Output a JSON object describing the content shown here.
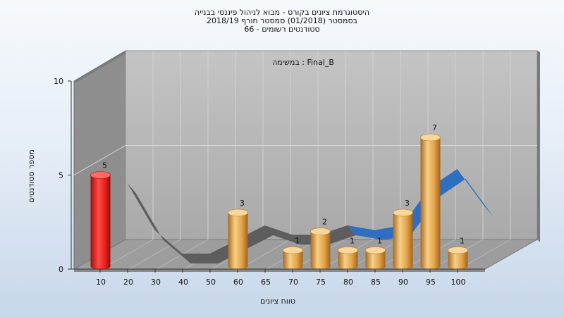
{
  "title_lines": [
    "היסטוגרמת ציונים בקורס - מבוא לניהול פיננסי בבנייה",
    "בסמסטר (01/2018) סמסטר חורף 2018/19",
    "סטודנטים רשומים - 66"
  ],
  "chart_data": {
    "type": "bar",
    "annotation": "במשימה : Final_B",
    "xlabel": "טווח ציונים",
    "ylabel": "מספר סטודנטים",
    "categories": [
      "10",
      "20",
      "30",
      "40",
      "50",
      "60",
      "65",
      "70",
      "75",
      "80",
      "85",
      "90",
      "95",
      "100"
    ],
    "values": [
      5,
      0,
      0,
      0,
      0,
      3,
      0,
      1,
      2,
      1,
      1,
      3,
      7,
      1
    ],
    "value_labels": [
      "5",
      "",
      "",
      "",
      "",
      "3",
      "",
      "1",
      "2",
      "1",
      "1",
      "3",
      "7",
      "1"
    ],
    "y_ticks": [
      "0",
      "5",
      "10"
    ],
    "ylim": [
      0,
      10
    ],
    "highlight_index": 0,
    "colors": {
      "highlight": "#e8231f",
      "bar": "#e3a349",
      "ribbon_gray": "#5d5d5d",
      "ribbon_blue": "#2f6ec0"
    }
  }
}
